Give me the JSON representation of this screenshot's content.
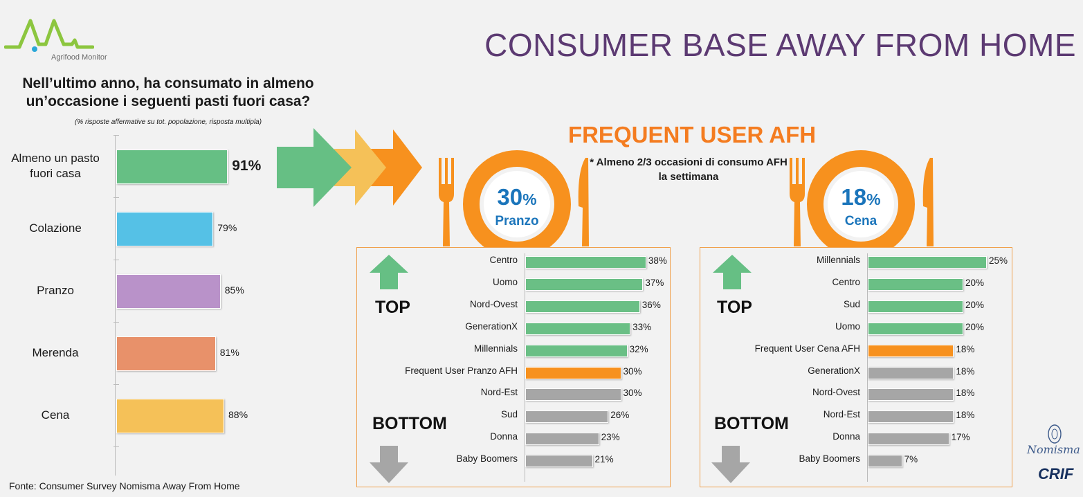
{
  "title": "CONSUMER BASE AWAY FROM HOME",
  "logo": {
    "name": "Agrifood Monitor"
  },
  "source": "Fonte: Consumer Survey  Nomisma Away From Home",
  "brands": {
    "nomisma": "Nomisma",
    "crif": "CRIF"
  },
  "colors": {
    "title": "#5c3a72",
    "frequent": "#f47c20",
    "top": "#6abf85",
    "bottom": "#a6a6a6",
    "highlight": "#f7911e"
  },
  "chart_data": [
    {
      "type": "bar",
      "orientation": "horizontal",
      "title": "Nell’ultimo anno, ha consumato in almeno un’occasione i seguenti pasti fuori casa?",
      "subtitle": "(% risposte affermative su tot. popolazione, risposta multipla)",
      "categories": [
        "Almeno un pasto fuori casa",
        "Colazione",
        "Pranzo",
        "Merenda",
        "Cena"
      ],
      "values": [
        91,
        79,
        85,
        81,
        88
      ],
      "value_labels": [
        "91%",
        "79%",
        "85%",
        "81%",
        "88%"
      ],
      "colors": [
        "#66bf84",
        "#55c1e6",
        "#b992c9",
        "#e8916a",
        "#f5c158"
      ],
      "unit": "%"
    },
    {
      "type": "bar",
      "orientation": "horizontal",
      "title": "FREQUENT USER AFH",
      "note": "* Almeno 2/3 occasioni di consumo AFH la settimana",
      "highlight": {
        "value": 30,
        "label": "Pranzo"
      },
      "top_label": "TOP",
      "bottom_label": "BOTTOM",
      "categories": [
        "Centro",
        "Uomo",
        "Nord-Ovest",
        "GenerationX",
        "Millennials",
        "Frequent User Pranzo AFH",
        "Nord-Est",
        "Sud",
        "Donna",
        "Baby Boomers"
      ],
      "values": [
        38,
        37,
        36,
        33,
        32,
        30,
        30,
        26,
        23,
        21
      ],
      "value_labels": [
        "38%",
        "37%",
        "36%",
        "33%",
        "32%",
        "30%",
        "30%",
        "26%",
        "23%",
        "21%"
      ],
      "groups": [
        "top",
        "top",
        "top",
        "top",
        "top",
        "reference",
        "bottom",
        "bottom",
        "bottom",
        "bottom"
      ],
      "unit": "%"
    },
    {
      "type": "bar",
      "orientation": "horizontal",
      "highlight": {
        "value": 18,
        "label": "Cena"
      },
      "top_label": "TOP",
      "bottom_label": "BOTTOM",
      "categories": [
        "Millennials",
        "Centro",
        "Sud",
        "Uomo",
        "Frequent User Cena AFH",
        "GenerationX",
        "Nord-Ovest",
        "Nord-Est",
        "Donna",
        "Baby Boomers"
      ],
      "values": [
        25,
        20,
        20,
        20,
        18,
        18,
        18,
        18,
        17,
        7
      ],
      "value_labels": [
        "25%",
        "20%",
        "20%",
        "20%",
        "18%",
        "18%",
        "18%",
        "18%",
        "17%",
        "7%"
      ],
      "groups": [
        "top",
        "top",
        "top",
        "top",
        "reference",
        "bottom",
        "bottom",
        "bottom",
        "bottom",
        "bottom"
      ],
      "unit": "%"
    }
  ]
}
